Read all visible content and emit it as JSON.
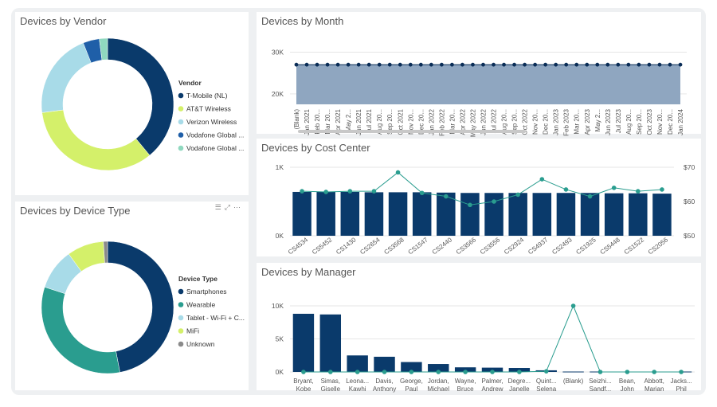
{
  "panels": {
    "vendor": "Devices by Vendor",
    "month": "Devices by Month",
    "cost": "Devices by Cost Center",
    "type": "Devices by Device Type",
    "manager": "Devices by Manager"
  },
  "toolbar_icons": [
    "filter-icon",
    "expand-icon",
    "more-icon"
  ],
  "colors": {
    "navy": "#0a3a6b",
    "teal": "#2a9d8f",
    "lightblue": "#a8dbe8",
    "lime": "#d4f06a",
    "blue": "#1f5fa8",
    "mint": "#8fd8bf",
    "gray": "#8a8a8a",
    "area": "#8fa6c0"
  },
  "chart_data": [
    {
      "type": "pie",
      "title": "Devices by Vendor",
      "legend_title": "Vendor",
      "legend_position": "right",
      "categories": [
        "T-Mobile (NL)",
        "AT&T Wireless",
        "Verizon Wireless",
        "Vodafone Global ...",
        "Vodafone Global ..."
      ],
      "values": [
        39,
        34,
        21,
        4,
        2
      ],
      "colors": [
        "#0a3a6b",
        "#d4f06a",
        "#a8dbe8",
        "#1f5fa8",
        "#8fd8bf"
      ]
    },
    {
      "type": "pie",
      "title": "Devices by Device Type",
      "legend_title": "Device Type",
      "legend_position": "right",
      "categories": [
        "Smartphones",
        "Wearable",
        "Tablet - Wi-Fi + C...",
        "MiFi",
        "Unknown"
      ],
      "values": [
        47,
        33,
        10,
        9,
        1
      ],
      "colors": [
        "#0a3a6b",
        "#2a9d8f",
        "#a8dbe8",
        "#d4f06a",
        "#8a8a8a"
      ]
    },
    {
      "type": "area",
      "title": "Devices by Month",
      "categories": [
        "(Blank)",
        "Jan 2021",
        "Feb 20...",
        "Mar 20...",
        "Apr 2021",
        "May 2...",
        "Jun 2021",
        "Jul 2021",
        "Aug 20...",
        "Sep 20...",
        "Oct 2021",
        "Nov 20...",
        "Dec 20...",
        "Jan 2022",
        "Feb 2022",
        "Mar 20...",
        "Apr 2022",
        "May 2022",
        "Jun 2022",
        "Jul 2022",
        "Aug 20...",
        "Sep 20...",
        "Oct 2022",
        "Nov 20...",
        "Dec 20...",
        "Jan 2023",
        "Feb 2023",
        "Mar 20...",
        "Apr 2023",
        "May 2...",
        "Jun 2023",
        "Jul 2023",
        "Aug 20...",
        "Sep 20...",
        "Oct 2023",
        "Nov 20...",
        "Dec 20...",
        "Jan 2024"
      ],
      "values": [
        27000,
        27000,
        27000,
        27000,
        27000,
        27000,
        27000,
        27000,
        27000,
        27000,
        27000,
        27000,
        27000,
        27000,
        27000,
        27000,
        27000,
        27000,
        27000,
        27000,
        27000,
        27000,
        27000,
        27000,
        27000,
        27000,
        27000,
        27000,
        27000,
        27000,
        27000,
        27000,
        27000,
        27000,
        27000,
        27000,
        27000,
        27000
      ],
      "yticks": [
        "30K",
        "20K"
      ],
      "ytick_values": [
        30000,
        20000
      ],
      "ylim": [
        17500,
        32000
      ],
      "grid": true
    },
    {
      "type": "bar",
      "title": "Devices by Cost Center",
      "categories": [
        "CS4534",
        "CS5452",
        "CS1430",
        "CS2654",
        "CS3568",
        "CS1547",
        "CS2440",
        "CS3566",
        "CS3556",
        "CS2924",
        "CS4937",
        "CS2493",
        "CS1925",
        "CS5448",
        "CS1522",
        "CS2056"
      ],
      "series": [
        {
          "values": [
            640,
            640,
            640,
            635,
            635,
            635,
            630,
            625,
            625,
            625,
            625,
            625,
            625,
            620,
            620,
            615
          ]
        },
        {
          "values": [
            63,
            62.8,
            63,
            63,
            68.5,
            62.5,
            61.5,
            59,
            60,
            62,
            66.5,
            63.5,
            61.5,
            64,
            63,
            63.5
          ]
        }
      ],
      "yticks_left": [
        "1K",
        "0K"
      ],
      "ylim_left": [
        0,
        1000
      ],
      "yticks_right": [
        "$70",
        "$60",
        "$50"
      ],
      "ylim_right": [
        50,
        70
      ],
      "grid": true
    },
    {
      "type": "bar",
      "title": "Devices by Manager",
      "categories": [
        [
          "Bryant,",
          "Kobe"
        ],
        [
          "Simas,",
          "Giselle"
        ],
        [
          "Leona...",
          "Kawhi"
        ],
        [
          "Davis,",
          "Anthony"
        ],
        [
          "George,",
          "Paul"
        ],
        [
          "Jordan,",
          "Michael"
        ],
        [
          "Wayne,",
          "Bruce"
        ],
        [
          "Palmer,",
          "Andrew"
        ],
        [
          "Degre...",
          "Janelle"
        ],
        [
          "Quint...",
          "Selena"
        ],
        [
          "(Blank)",
          ""
        ],
        [
          "Seizhi...",
          "Sandf..."
        ],
        [
          "Bean,",
          "John"
        ],
        [
          "Abbott,",
          "Marian"
        ],
        [
          "Jacks...",
          "Phil"
        ]
      ],
      "series": [
        {
          "values": [
            8800,
            8700,
            2500,
            2300,
            1500,
            1200,
            700,
            650,
            600,
            250,
            60,
            60,
            60,
            60,
            60
          ]
        },
        {
          "values": [
            0,
            0,
            0,
            0,
            0,
            0,
            0,
            0,
            0,
            100,
            10000,
            0,
            0,
            0,
            0
          ]
        }
      ],
      "yticks": [
        "10K",
        "5K",
        "0K"
      ],
      "ylim": [
        0,
        10000
      ],
      "grid": true
    }
  ]
}
